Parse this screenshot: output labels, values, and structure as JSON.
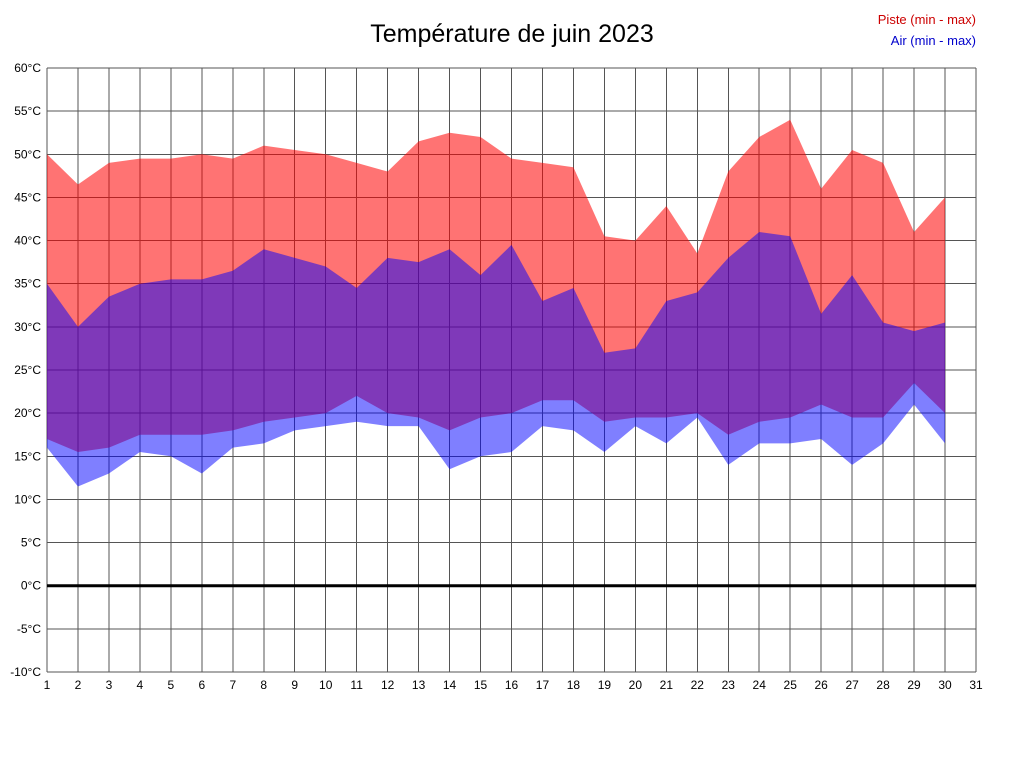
{
  "title": "Température de juin 2023",
  "legend": [
    {
      "label": "Piste (min - max)",
      "color": "#cc0000"
    },
    {
      "label": "Air (min - max)",
      "color": "#0000cc"
    }
  ],
  "chart_data": {
    "type": "area",
    "title": "Température de juin 2023",
    "xlabel": "",
    "ylabel": "",
    "xlim": [
      1,
      31
    ],
    "ylim": [
      -10,
      60
    ],
    "grid": true,
    "grid_color": "#555555",
    "zero_line": {
      "value": 0,
      "color": "#000000",
      "width": 3
    },
    "x_ticks": [
      1,
      2,
      3,
      4,
      5,
      6,
      7,
      8,
      9,
      10,
      11,
      12,
      13,
      14,
      15,
      16,
      17,
      18,
      19,
      20,
      21,
      22,
      23,
      24,
      25,
      26,
      27,
      28,
      29,
      30,
      31
    ],
    "y_ticks": [
      "60°C",
      "55°C",
      "50°C",
      "45°C",
      "40°C",
      "35°C",
      "30°C",
      "25°C",
      "20°C",
      "15°C",
      "10°C",
      "5°C",
      "0°C",
      "-5°C",
      "-10°C"
    ],
    "x": [
      1,
      2,
      3,
      4,
      5,
      6,
      7,
      8,
      9,
      10,
      11,
      12,
      13,
      14,
      15,
      16,
      17,
      18,
      19,
      20,
      21,
      22,
      23,
      24,
      25,
      26,
      27,
      28,
      29,
      30
    ],
    "series": [
      {
        "name": "Piste (min - max)",
        "fill": "rgba(255,0,0,0.55)",
        "max": [
          50,
          46.5,
          49,
          49.5,
          49.5,
          50,
          49.5,
          51,
          50.5,
          50,
          49,
          48,
          51.5,
          52.5,
          52,
          49.5,
          49,
          48.5,
          40.5,
          40,
          44,
          38.5,
          48,
          52,
          54,
          46,
          50.5,
          49,
          41,
          45
        ],
        "min": [
          17,
          15.5,
          16,
          17.5,
          17.5,
          17.5,
          18,
          19,
          19.5,
          20,
          22,
          20,
          19.5,
          18,
          19.5,
          20,
          21.5,
          21.5,
          19,
          19.5,
          19.5,
          20,
          17.5,
          19,
          19.5,
          21,
          19.5,
          19.5,
          23.5,
          20
        ]
      },
      {
        "name": "Air (min - max)",
        "fill": "rgba(0,0,255,0.5)",
        "max": [
          35,
          30,
          33.5,
          35,
          35.5,
          35.5,
          36.5,
          39,
          38,
          37,
          34.5,
          38,
          37.5,
          39,
          36,
          39.5,
          33,
          34.5,
          27,
          27.5,
          33,
          34,
          38,
          41,
          40.5,
          31.5,
          36,
          30.5,
          29.5,
          30.5
        ],
        "min": [
          16,
          11.5,
          13,
          15.5,
          15,
          13,
          16,
          16.5,
          18,
          18.5,
          19,
          18.5,
          18.5,
          13.5,
          15,
          15.5,
          18.5,
          18,
          15.5,
          18.5,
          16.5,
          19.5,
          14,
          16.5,
          16.5,
          17,
          14,
          16.5,
          21,
          16.5
        ]
      }
    ]
  }
}
